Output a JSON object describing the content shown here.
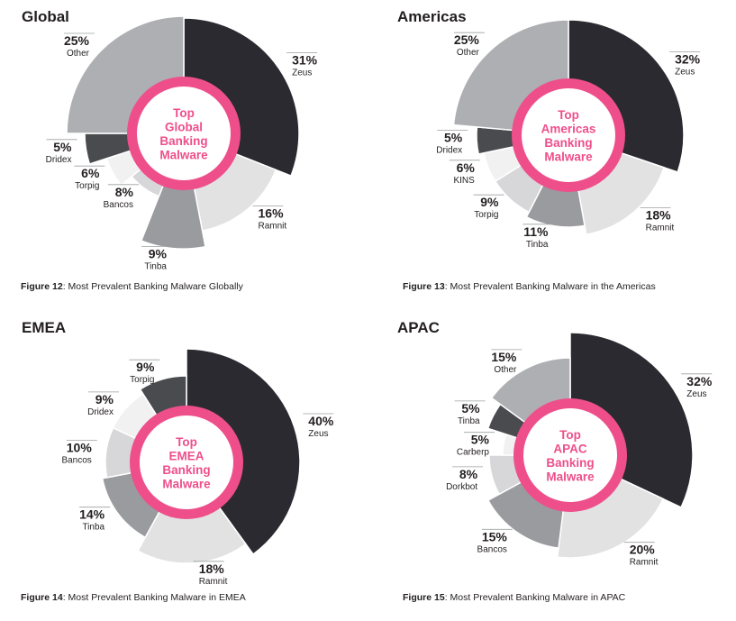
{
  "colors": {
    "center_ring": "#ee4f8b",
    "center_fill": "#ffffff",
    "leader": "#9d9fa2"
  },
  "chart_data": [
    {
      "type": "pie",
      "region": "Global",
      "center_label": [
        "Top",
        "Global",
        "Banking",
        "Malware"
      ],
      "figure_label": "Figure 12",
      "caption": ": Most Prevalent Banking Malware Globally",
      "slices": [
        {
          "name": "Zeus",
          "value": 31,
          "label": "31%",
          "color": "#2b2a30"
        },
        {
          "name": "Ramnit",
          "value": 16,
          "label": "16%",
          "color": "#e2e2e3"
        },
        {
          "name": "Tinba",
          "value": 9,
          "label": "9%",
          "color": "#9a9b9e"
        },
        {
          "name": "Bancos",
          "value": 8,
          "label": "8%",
          "color": "#d7d7d9"
        },
        {
          "name": "Torpig",
          "value": 6,
          "label": "6%",
          "color": "#f1f1f2"
        },
        {
          "name": "Dridex",
          "value": 5,
          "label": "5%",
          "color": "#4a4b4f"
        },
        {
          "name": "Other",
          "value": 25,
          "label": "25%",
          "color": "#aeafb2"
        }
      ]
    },
    {
      "type": "pie",
      "region": "Americas",
      "center_label": [
        "Top",
        "Americas",
        "Banking",
        "Malware"
      ],
      "figure_label": "Figure 13",
      "caption": ": Most Prevalent Banking Malware in the Americas",
      "slices": [
        {
          "name": "Zeus",
          "value": 32,
          "label": "32%",
          "color": "#2b2a30"
        },
        {
          "name": "Ramnit",
          "value": 18,
          "label": "18%",
          "color": "#e2e2e3"
        },
        {
          "name": "Tinba",
          "value": 11,
          "label": "11%",
          "color": "#9a9b9e"
        },
        {
          "name": "Torpig",
          "value": 9,
          "label": "9%",
          "color": "#d7d7d9"
        },
        {
          "name": "KINS",
          "value": 6,
          "label": "6%",
          "color": "#f1f1f2"
        },
        {
          "name": "Dridex",
          "value": 5,
          "label": "5%",
          "color": "#4a4b4f"
        },
        {
          "name": "Other",
          "value": 25,
          "label": "25%",
          "color": "#aeafb2"
        }
      ]
    },
    {
      "type": "pie",
      "region": "EMEA",
      "center_label": [
        "Top",
        "EMEA",
        "Banking",
        "Malware"
      ],
      "figure_label": "Figure 14",
      "caption": ": Most Prevalent Banking Malware in EMEA",
      "slices": [
        {
          "name": "Zeus",
          "value": 40,
          "label": "40%",
          "color": "#2b2a30"
        },
        {
          "name": "Ramnit",
          "value": 18,
          "label": "18%",
          "color": "#e2e2e3"
        },
        {
          "name": "Tinba",
          "value": 14,
          "label": "14%",
          "color": "#9a9b9e"
        },
        {
          "name": "Bancos",
          "value": 10,
          "label": "10%",
          "color": "#d7d7d9"
        },
        {
          "name": "Dridex",
          "value": 9,
          "label": "9%",
          "color": "#f1f1f2"
        },
        {
          "name": "Torpig",
          "value": 9,
          "label": "9%",
          "color": "#4a4b4f"
        }
      ]
    },
    {
      "type": "pie",
      "region": "APAC",
      "center_label": [
        "Top",
        "APAC",
        "Banking",
        "Malware"
      ],
      "figure_label": "Figure 15",
      "caption": ": Most Prevalent Banking Malware in APAC",
      "slices": [
        {
          "name": "Zeus",
          "value": 32,
          "label": "32%",
          "color": "#2b2a30"
        },
        {
          "name": "Ramnit",
          "value": 20,
          "label": "20%",
          "color": "#e2e2e3"
        },
        {
          "name": "Bancos",
          "value": 15,
          "label": "15%",
          "color": "#9a9b9e"
        },
        {
          "name": "Dorkbot",
          "value": 8,
          "label": "8%",
          "color": "#d7d7d9"
        },
        {
          "name": "Carberp",
          "value": 5,
          "label": "5%",
          "color": "#f1f1f2"
        },
        {
          "name": "Tinba",
          "value": 5,
          "label": "5%",
          "color": "#4a4b4f"
        },
        {
          "name": "Other",
          "value": 15,
          "label": "15%",
          "color": "#aeafb2"
        }
      ]
    }
  ]
}
